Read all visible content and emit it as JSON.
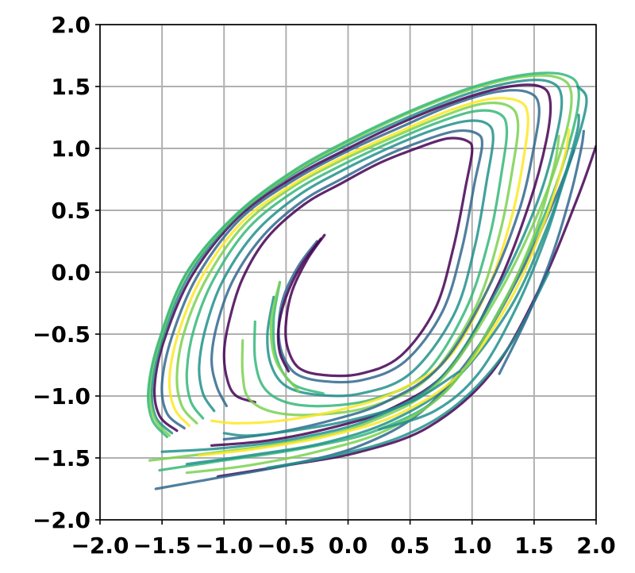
{
  "chart_data": {
    "type": "line",
    "title": "",
    "xlabel": "",
    "ylabel": "",
    "xlim": [
      -2.0,
      2.0
    ],
    "ylim": [
      -2.0,
      2.0
    ],
    "x_ticks": [
      "−2.0",
      "−1.5",
      "−1.0",
      "−0.5",
      "0.0",
      "0.5",
      "1.0",
      "1.5",
      "2.0"
    ],
    "y_ticks": [
      "−2.0",
      "−1.5",
      "−1.0",
      "−0.5",
      "0.0",
      "0.5",
      "1.0",
      "1.5",
      "2.0"
    ],
    "grid": true,
    "colormap": [
      "#440154",
      "#31688e",
      "#21918c",
      "#35b779",
      "#7ad151",
      "#fde725"
    ],
    "series": [
      {
        "color": "#440154",
        "x": [
          -0.19,
          -0.33,
          -0.45,
          -0.5,
          -0.49,
          -0.4,
          -0.2,
          0.1,
          0.42,
          0.7,
          0.85,
          0.95,
          1.0,
          0.96,
          0.8,
          0.55,
          0.25,
          -0.05,
          -0.35,
          -0.65,
          -0.85,
          -0.96,
          -1.0,
          -0.97,
          -0.9,
          -0.75
        ],
        "y": [
          0.3,
          0.1,
          -0.15,
          -0.4,
          -0.6,
          -0.77,
          -0.83,
          -0.82,
          -0.68,
          -0.3,
          0.2,
          0.7,
          0.98,
          1.06,
          1.08,
          1.0,
          0.88,
          0.72,
          0.55,
          0.28,
          -0.05,
          -0.4,
          -0.66,
          -0.88,
          -1.0,
          -1.05
        ]
      },
      {
        "color": "#31688e",
        "x": [
          -0.25,
          -0.4,
          -0.52,
          -0.56,
          -0.53,
          -0.42,
          -0.2,
          0.12,
          0.46,
          0.76,
          0.92,
          1.02,
          1.08,
          1.04,
          0.87,
          0.6,
          0.28,
          -0.04,
          -0.36,
          -0.68,
          -0.92,
          -1.05,
          -1.1,
          -1.06,
          -0.98
        ],
        "y": [
          0.25,
          0.05,
          -0.2,
          -0.45,
          -0.66,
          -0.82,
          -0.88,
          -0.87,
          -0.72,
          -0.32,
          0.2,
          0.72,
          1.02,
          1.12,
          1.14,
          1.06,
          0.93,
          0.76,
          0.58,
          0.3,
          -0.05,
          -0.4,
          -0.7,
          -0.92,
          -1.08
        ]
      },
      {
        "color": "#21918c",
        "x": [
          -0.6,
          -0.65,
          -0.62,
          -0.5,
          -0.25,
          0.1,
          0.5,
          0.85,
          1.02,
          1.12,
          1.17,
          1.12,
          0.95,
          0.66,
          0.3,
          -0.05,
          -0.4,
          -0.74,
          -1.0,
          -1.14,
          -1.2,
          -1.17,
          -1.08
        ],
        "y": [
          -0.2,
          -0.5,
          -0.75,
          -0.92,
          -0.99,
          -0.98,
          -0.82,
          -0.35,
          0.2,
          0.75,
          1.08,
          1.2,
          1.22,
          1.14,
          0.99,
          0.82,
          0.62,
          0.33,
          -0.05,
          -0.42,
          -0.75,
          -0.98,
          -1.12
        ]
      },
      {
        "color": "#35b779",
        "x": [
          -0.75,
          -0.75,
          -0.68,
          -0.5,
          -0.18,
          0.22,
          0.62,
          0.95,
          1.14,
          1.24,
          1.28,
          1.22,
          1.02,
          0.7,
          0.32,
          -0.06,
          -0.44,
          -0.8,
          -1.08,
          -1.24,
          -1.3,
          -1.27,
          -1.17
        ],
        "y": [
          -0.4,
          -0.7,
          -0.93,
          -1.05,
          -1.08,
          -1.02,
          -0.82,
          -0.3,
          0.28,
          0.82,
          1.15,
          1.28,
          1.3,
          1.2,
          1.04,
          0.86,
          0.65,
          0.36,
          -0.05,
          -0.45,
          -0.8,
          -1.04,
          -1.18
        ]
      },
      {
        "color": "#7ad151",
        "x": [
          -0.85,
          -0.85,
          -0.8,
          -0.6,
          -0.25,
          0.2,
          0.65,
          1.02,
          1.22,
          1.33,
          1.37,
          1.3,
          1.08,
          0.74,
          0.34,
          -0.06,
          -0.46,
          -0.84,
          -1.14,
          -1.32,
          -1.38,
          -1.34,
          -1.22
        ],
        "y": [
          -0.55,
          -0.82,
          -1.02,
          -1.13,
          -1.15,
          -1.08,
          -0.85,
          -0.3,
          0.3,
          0.86,
          1.2,
          1.34,
          1.36,
          1.25,
          1.08,
          0.9,
          0.68,
          0.38,
          -0.05,
          -0.48,
          -0.84,
          -1.08,
          -1.22
        ]
      },
      {
        "color": "#fde725",
        "x": [
          -1.1,
          -0.9,
          -0.55,
          -0.1,
          0.35,
          0.8,
          1.12,
          1.32,
          1.42,
          1.45,
          1.38,
          1.15,
          0.8,
          0.38,
          -0.04,
          -0.46,
          -0.86,
          -1.18,
          -1.37,
          -1.44,
          -1.4,
          -1.28
        ],
        "y": [
          -1.2,
          -1.22,
          -1.2,
          -1.12,
          -0.98,
          -0.7,
          -0.15,
          0.45,
          0.95,
          1.26,
          1.38,
          1.4,
          1.3,
          1.12,
          0.93,
          0.7,
          0.4,
          -0.04,
          -0.5,
          -0.86,
          -1.1,
          -1.24
        ]
      },
      {
        "color": "#31688e",
        "x": [
          -1.0,
          -0.6,
          -0.15,
          0.3,
          0.75,
          1.12,
          1.38,
          1.5,
          1.54,
          1.46,
          1.22,
          0.86,
          0.42,
          -0.02,
          -0.46,
          -0.88,
          -1.22,
          -1.42,
          -1.5,
          -1.46,
          -1.32
        ],
        "y": [
          -1.35,
          -1.3,
          -1.2,
          -1.05,
          -0.75,
          -0.15,
          0.5,
          1.02,
          1.33,
          1.45,
          1.46,
          1.36,
          1.17,
          0.97,
          0.73,
          0.42,
          -0.04,
          -0.52,
          -0.9,
          -1.14,
          -1.26
        ]
      },
      {
        "color": "#440154",
        "x": [
          -1.1,
          -0.65,
          -0.15,
          0.35,
          0.82,
          1.2,
          1.46,
          1.6,
          1.63,
          1.55,
          1.3,
          0.92,
          0.46,
          0.0,
          -0.45,
          -0.89,
          -1.26,
          -1.48,
          -1.56,
          -1.52,
          -1.38
        ],
        "y": [
          -1.4,
          -1.36,
          -1.26,
          -1.1,
          -0.78,
          -0.12,
          0.55,
          1.07,
          1.38,
          1.5,
          1.5,
          1.4,
          1.22,
          1.0,
          0.76,
          0.44,
          -0.03,
          -0.54,
          -0.92,
          -1.16,
          -1.28
        ]
      },
      {
        "color": "#21918c",
        "x": [
          -1.5,
          -1.0,
          -0.4,
          0.2,
          0.75,
          1.2,
          1.52,
          1.68,
          1.72,
          1.62,
          1.36,
          0.96,
          0.48,
          0.0,
          -0.46,
          -0.9,
          -1.28,
          -1.5,
          -1.58,
          -1.55,
          -1.42
        ],
        "y": [
          -1.45,
          -1.42,
          -1.34,
          -1.18,
          -0.85,
          -0.15,
          0.55,
          1.1,
          1.42,
          1.54,
          1.54,
          1.44,
          1.25,
          1.03,
          0.78,
          0.45,
          -0.02,
          -0.55,
          -0.93,
          -1.17,
          -1.3
        ]
      },
      {
        "color": "#7ad151",
        "x": [
          -1.6,
          -1.1,
          -0.45,
          0.15,
          0.72,
          1.2,
          1.55,
          1.75,
          1.8,
          1.7,
          1.42,
          1.0,
          0.5,
          0.02,
          -0.45,
          -0.9,
          -1.3,
          -1.52,
          -1.6,
          -1.56,
          -1.44
        ],
        "y": [
          -1.52,
          -1.46,
          -1.37,
          -1.22,
          -0.9,
          -0.2,
          0.52,
          1.1,
          1.44,
          1.57,
          1.58,
          1.48,
          1.29,
          1.06,
          0.8,
          0.46,
          -0.01,
          -0.56,
          -0.94,
          -1.18,
          -1.32
        ]
      },
      {
        "color": "#35b779",
        "x": [
          -1.52,
          -1.0,
          -0.35,
          0.25,
          0.8,
          1.25,
          1.6,
          1.8,
          1.86,
          1.76,
          1.46,
          1.02,
          0.52,
          0.03,
          -0.44,
          -0.9,
          -1.3,
          -1.53,
          -1.61,
          -1.58,
          -1.46
        ],
        "y": [
          -1.6,
          -1.52,
          -1.42,
          -1.27,
          -0.95,
          -0.25,
          0.5,
          1.1,
          1.46,
          1.59,
          1.6,
          1.5,
          1.31,
          1.08,
          0.82,
          0.47,
          0.0,
          -0.57,
          -0.95,
          -1.19,
          -1.33
        ]
      },
      {
        "color": "#440154",
        "x": [
          -1.05,
          -0.5,
          0.1,
          0.65,
          1.15,
          1.55,
          1.85,
          2.0
        ],
        "y": [
          -1.65,
          -1.56,
          -1.45,
          -1.25,
          -0.82,
          -0.12,
          0.6,
          1.02
        ]
      },
      {
        "color": "#21918c",
        "x": [
          -1.3,
          -0.8,
          -0.2,
          0.35,
          0.85,
          1.3,
          1.6,
          1.8,
          1.9,
          1.92,
          1.85
        ],
        "y": [
          -1.55,
          -1.48,
          -1.38,
          -1.2,
          -0.88,
          -0.3,
          0.35,
          0.92,
          1.25,
          1.42,
          1.5
        ]
      },
      {
        "color": "#31688e",
        "x": [
          -1.55,
          -1.05,
          -0.45,
          0.1,
          0.6,
          1.05,
          1.42,
          1.68,
          1.82
        ],
        "y": [
          -1.75,
          -1.66,
          -1.55,
          -1.4,
          -1.12,
          -0.6,
          0.05,
          0.62,
          0.98
        ]
      },
      {
        "color": "#fde725",
        "x": [
          -1.2,
          -0.7,
          -0.15,
          0.4,
          0.9,
          1.32,
          1.6,
          1.75,
          1.78
        ],
        "y": [
          -1.48,
          -1.42,
          -1.32,
          -1.15,
          -0.82,
          -0.2,
          0.45,
          0.95,
          1.15
        ]
      },
      {
        "color": "#21918c",
        "x": [
          -0.65,
          -0.1,
          0.45,
          0.9,
          1.3,
          1.62
        ],
        "y": [
          -1.58,
          -1.48,
          -1.32,
          -1.05,
          -0.6,
          0.0
        ]
      },
      {
        "color": "#7ad151",
        "x": [
          -1.3,
          -0.8,
          -0.25,
          0.3,
          0.8,
          1.2,
          1.5,
          1.66,
          1.7
        ],
        "y": [
          -1.62,
          -1.56,
          -1.45,
          -1.28,
          -0.95,
          -0.35,
          0.3,
          0.85,
          1.1
        ]
      },
      {
        "color": "#21918c",
        "x": [
          0.25,
          0.7,
          1.05,
          1.35,
          1.6,
          1.76,
          1.85,
          1.86
        ],
        "y": [
          -1.27,
          -1.12,
          -0.82,
          -0.3,
          0.3,
          0.82,
          1.15,
          1.27
        ]
      },
      {
        "color": "#31688e",
        "x": [
          1.22,
          1.45,
          1.65,
          1.8,
          1.88,
          1.9
        ],
        "y": [
          -0.82,
          -0.35,
          0.15,
          0.65,
          1.0,
          1.14
        ]
      },
      {
        "color": "#440154",
        "x": [
          -0.22,
          -0.38,
          -0.5,
          -0.56,
          -0.55,
          -0.48
        ],
        "y": [
          0.27,
          0.05,
          -0.2,
          -0.45,
          -0.65,
          -0.8
        ]
      },
      {
        "color": "#35b779",
        "x": [
          -0.55,
          -0.6,
          -0.58,
          -0.45,
          -0.2
        ],
        "y": [
          -0.08,
          -0.38,
          -0.68,
          -0.9,
          -0.98
        ]
      },
      {
        "color": "#7ad151",
        "x": [
          -0.55,
          -0.62,
          -0.58,
          -0.4
        ],
        "y": [
          -0.08,
          -0.4,
          -0.72,
          -0.96
        ]
      },
      {
        "color": "#21918c",
        "x": [
          -1.0,
          -0.8,
          -0.45,
          0.0,
          0.5,
          0.9
        ],
        "y": [
          -1.3,
          -1.32,
          -1.28,
          -1.2,
          -1.05,
          -0.8
        ]
      }
    ]
  }
}
